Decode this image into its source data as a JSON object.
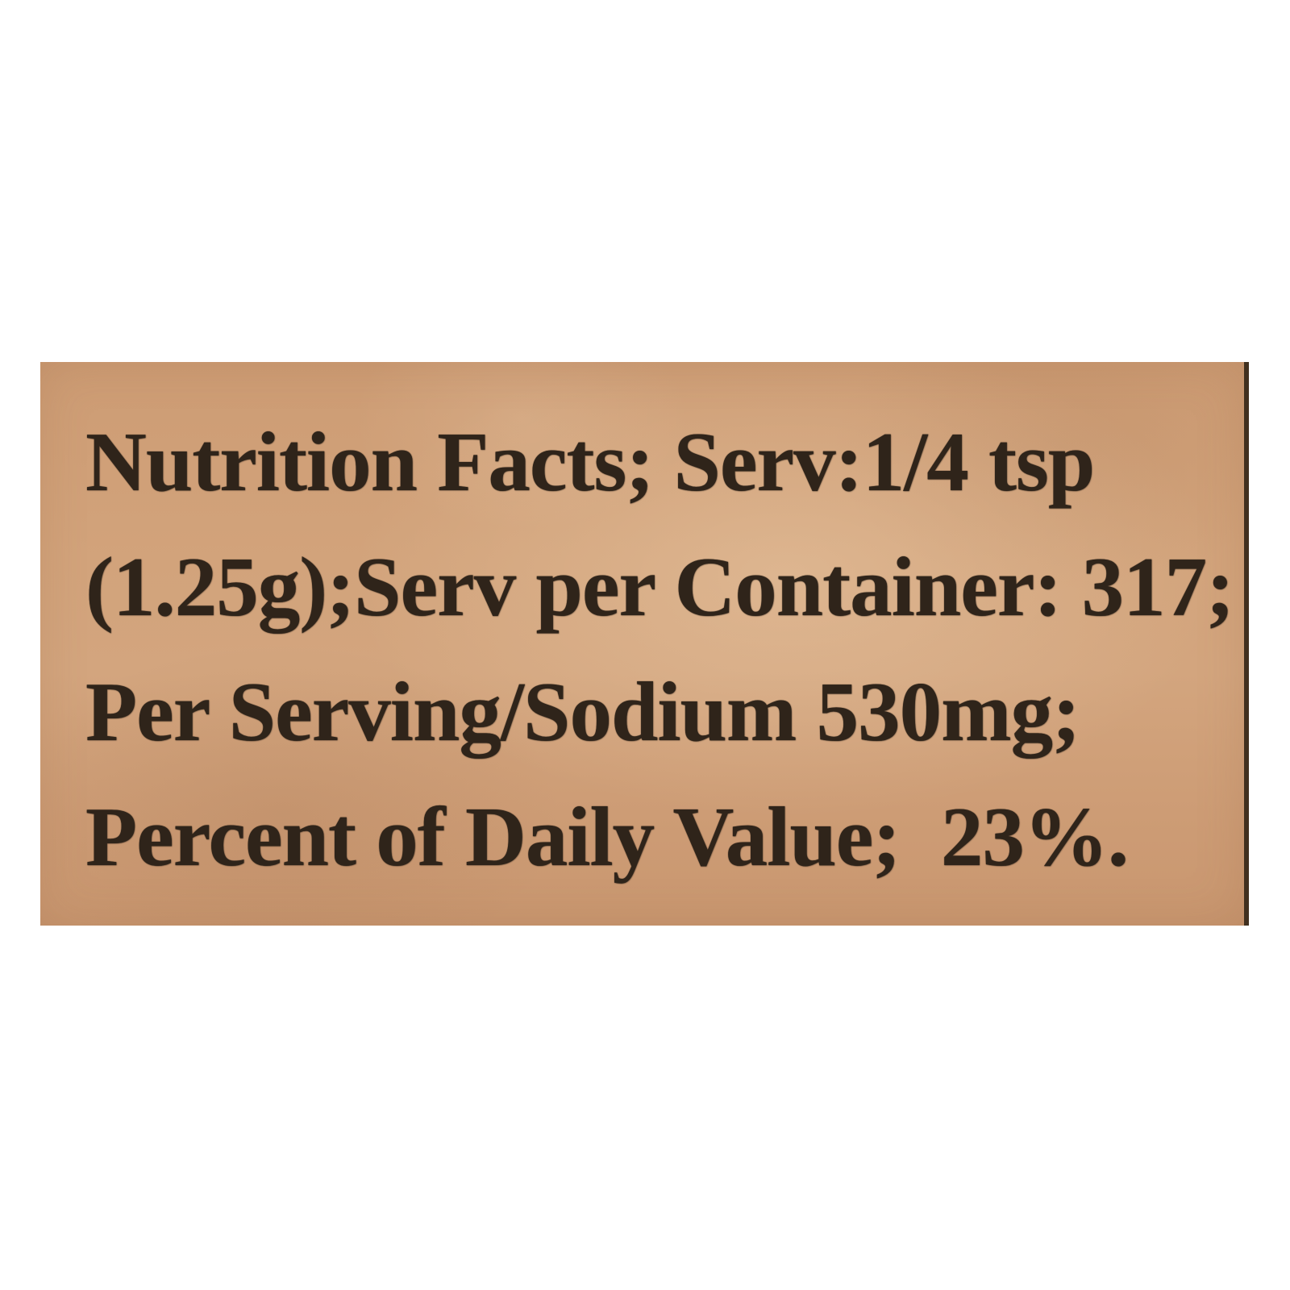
{
  "label": {
    "lines": [
      "Nutrition Facts; Serv:1/4 tsp",
      "(1.25g);Serv per Container: 317;",
      "Per Serving/Sodium 530mg;",
      "Percent of Daily Value;  23%."
    ],
    "full_text": "Nutrition Facts; Serv:1/4 tsp (1.25g);Serv per Container: 317; Per Serving/Sodium 530mg; Percent of Daily Value; 23%.",
    "values": {
      "serving_size": "1/4 tsp (1.25g)",
      "servings_per_container": "317",
      "sodium_per_serving": "530mg",
      "sodium_percent_daily_value": "23%"
    },
    "colors": {
      "paper": "#d2a37b",
      "ink": "#2f241a",
      "page_background": "#ffffff",
      "label_edge": "#41301f"
    }
  }
}
